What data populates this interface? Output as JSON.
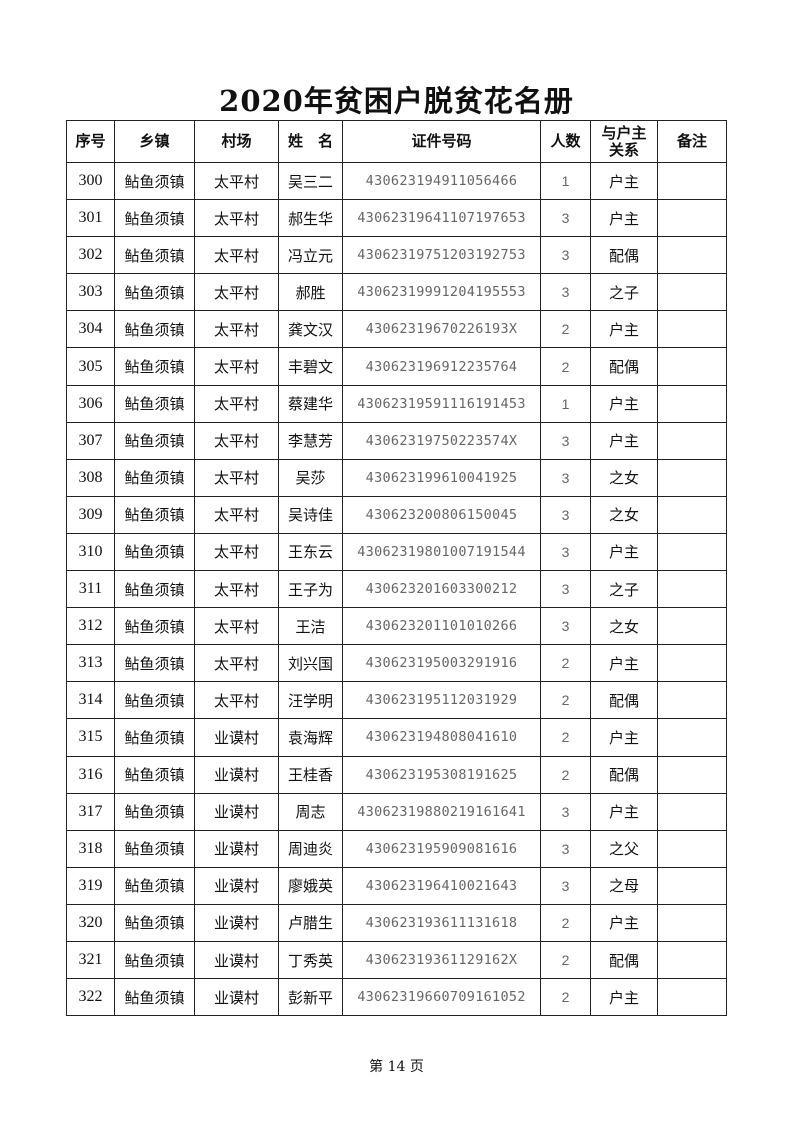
{
  "title": "2020年贫困户脱贫花名册",
  "headers": {
    "seq": "序号",
    "township": "乡镇",
    "village": "村场",
    "name": "姓　名",
    "id_number": "证件号码",
    "count": "人数",
    "relation_line1": "与户主",
    "relation_line2": "关系",
    "remarks": "备注"
  },
  "rows": [
    {
      "seq": "300",
      "township": "鲇鱼须镇",
      "village": "太平村",
      "name": "吴三二",
      "id": "430623194911056466",
      "count": "1",
      "relation": "户主",
      "remarks": ""
    },
    {
      "seq": "301",
      "township": "鲇鱼须镇",
      "village": "太平村",
      "name": "郝生华",
      "id": "4306231964110719765 3",
      "count": "3",
      "relation": "户主",
      "remarks": ""
    },
    {
      "seq": "302",
      "township": "鲇鱼须镇",
      "village": "太平村",
      "name": "冯立元",
      "id": "43062319751203192753",
      "count": "3",
      "relation": "配偶",
      "remarks": ""
    },
    {
      "seq": "303",
      "township": "鲇鱼须镇",
      "village": "太平村",
      "name": "郝胜",
      "id": "43062319991204195553",
      "count": "3",
      "relation": "之子",
      "remarks": ""
    },
    {
      "seq": "304",
      "township": "鲇鱼须镇",
      "village": "太平村",
      "name": "龚文汉",
      "id": "43062319670226193X",
      "count": "2",
      "relation": "户主",
      "remarks": ""
    },
    {
      "seq": "305",
      "township": "鲇鱼须镇",
      "village": "太平村",
      "name": "丰碧文",
      "id": "430623196912235764",
      "count": "2",
      "relation": "配偶",
      "remarks": ""
    },
    {
      "seq": "306",
      "township": "鲇鱼须镇",
      "village": "太平村",
      "name": "蔡建华",
      "id": "43062319591116191453",
      "count": "1",
      "relation": "户主",
      "remarks": ""
    },
    {
      "seq": "307",
      "township": "鲇鱼须镇",
      "village": "太平村",
      "name": "李慧芳",
      "id": "43062319750223574X",
      "count": "3",
      "relation": "户主",
      "remarks": ""
    },
    {
      "seq": "308",
      "township": "鲇鱼须镇",
      "village": "太平村",
      "name": "吴莎",
      "id": "430623199610041925",
      "count": "3",
      "relation": "之女",
      "remarks": ""
    },
    {
      "seq": "309",
      "township": "鲇鱼须镇",
      "village": "太平村",
      "name": "吴诗佳",
      "id": "430623200806150045",
      "count": "3",
      "relation": "之女",
      "remarks": ""
    },
    {
      "seq": "310",
      "township": "鲇鱼须镇",
      "village": "太平村",
      "name": "王东云",
      "id": "43062319801007191544",
      "count": "3",
      "relation": "户主",
      "remarks": ""
    },
    {
      "seq": "311",
      "township": "鲇鱼须镇",
      "village": "太平村",
      "name": "王子为",
      "id": "430623201603300212",
      "count": "3",
      "relation": "之子",
      "remarks": ""
    },
    {
      "seq": "312",
      "township": "鲇鱼须镇",
      "village": "太平村",
      "name": "王洁",
      "id": "430623201101010266",
      "count": "3",
      "relation": "之女",
      "remarks": ""
    },
    {
      "seq": "313",
      "township": "鲇鱼须镇",
      "village": "太平村",
      "name": "刘兴国",
      "id": "430623195003291916",
      "count": "2",
      "relation": "户主",
      "remarks": ""
    },
    {
      "seq": "314",
      "township": "鲇鱼须镇",
      "village": "太平村",
      "name": "汪学明",
      "id": "430623195112031929",
      "count": "2",
      "relation": "配偶",
      "remarks": ""
    },
    {
      "seq": "315",
      "township": "鲇鱼须镇",
      "village": "业谟村",
      "name": "袁海辉",
      "id": "430623194808041610",
      "count": "2",
      "relation": "户主",
      "remarks": ""
    },
    {
      "seq": "316",
      "township": "鲇鱼须镇",
      "village": "业谟村",
      "name": "王桂香",
      "id": "430623195308191625",
      "count": "2",
      "relation": "配偶",
      "remarks": ""
    },
    {
      "seq": "317",
      "township": "鲇鱼须镇",
      "village": "业谟村",
      "name": "周志",
      "id": "43062319880219161641",
      "count": "3",
      "relation": "户主",
      "remarks": ""
    },
    {
      "seq": "318",
      "township": "鲇鱼须镇",
      "village": "业谟村",
      "name": "周迪炎",
      "id": "430623195909081616",
      "count": "3",
      "relation": "之父",
      "remarks": ""
    },
    {
      "seq": "319",
      "township": "鲇鱼须镇",
      "village": "业谟村",
      "name": "廖娥英",
      "id": "430623196410021643",
      "count": "3",
      "relation": "之母",
      "remarks": ""
    },
    {
      "seq": "320",
      "township": "鲇鱼须镇",
      "village": "业谟村",
      "name": "卢腊生",
      "id": "430623193611131618",
      "count": "2",
      "relation": "户主",
      "remarks": ""
    },
    {
      "seq": "321",
      "township": "鲇鱼须镇",
      "village": "业谟村",
      "name": "丁秀英",
      "id": "43062319361129162X",
      "count": "2",
      "relation": "配偶",
      "remarks": ""
    },
    {
      "seq": "322",
      "township": "鲇鱼须镇",
      "village": "业谟村",
      "name": "彭新平",
      "id": "43062319660709161052",
      "count": "2",
      "relation": "户主",
      "remarks": ""
    }
  ],
  "footer": "第 14 页"
}
